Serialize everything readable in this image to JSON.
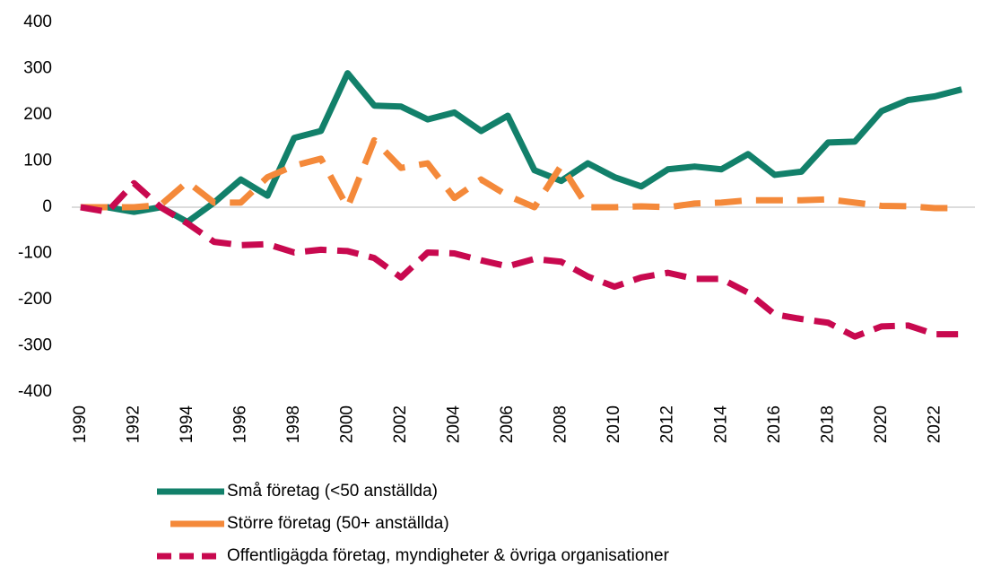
{
  "chart_data": {
    "type": "line",
    "x": [
      1990,
      1991,
      1992,
      1993,
      1994,
      1995,
      1996,
      1997,
      1998,
      1999,
      2000,
      2001,
      2002,
      2003,
      2004,
      2005,
      2006,
      2007,
      2008,
      2009,
      2010,
      2011,
      2012,
      2013,
      2014,
      2015,
      2016,
      2017,
      2018,
      2019,
      2020,
      2021,
      2022,
      2023
    ],
    "xlim": [
      1989.5,
      2023.5
    ],
    "xticks": [
      1990,
      1992,
      1994,
      1996,
      1998,
      2000,
      2002,
      2004,
      2006,
      2008,
      2010,
      2012,
      2014,
      2016,
      2018,
      2020,
      2022
    ],
    "ylim": [
      -400,
      400
    ],
    "yticks": [
      -400,
      -300,
      -200,
      -100,
      0,
      100,
      200,
      300,
      400
    ],
    "series": [
      {
        "name": "Små företag (<50 anställda)",
        "color": "#12806a",
        "linestyle": "solid",
        "values": [
          0,
          0,
          -10,
          0,
          -32,
          10,
          60,
          25,
          150,
          165,
          290,
          220,
          218,
          190,
          205,
          165,
          198,
          80,
          57,
          95,
          65,
          45,
          82,
          88,
          82,
          115,
          70,
          77,
          140,
          142,
          208,
          232,
          240,
          255
        ]
      },
      {
        "name": "Större företag (50+ anställda)",
        "color": "#f4893a",
        "linestyle": "dashed",
        "values": [
          0,
          0,
          0,
          5,
          55,
          10,
          10,
          65,
          90,
          105,
          0,
          145,
          85,
          95,
          20,
          60,
          25,
          0,
          90,
          0,
          0,
          2,
          0,
          8,
          10,
          15,
          15,
          15,
          17,
          10,
          3,
          2,
          -2,
          -2
        ]
      },
      {
        "name": "Offentligägda företag, myndigheter & övriga organisationer",
        "color": "#c8094f",
        "linestyle": "dashdot",
        "values": [
          0,
          -10,
          52,
          0,
          -35,
          -75,
          -82,
          -80,
          -98,
          -92,
          -95,
          -110,
          -152,
          -98,
          -100,
          -115,
          -128,
          -112,
          -118,
          -150,
          -172,
          -152,
          -142,
          -155,
          -155,
          -185,
          -232,
          -242,
          -250,
          -280,
          -258,
          -256,
          -275,
          -275
        ]
      }
    ]
  }
}
